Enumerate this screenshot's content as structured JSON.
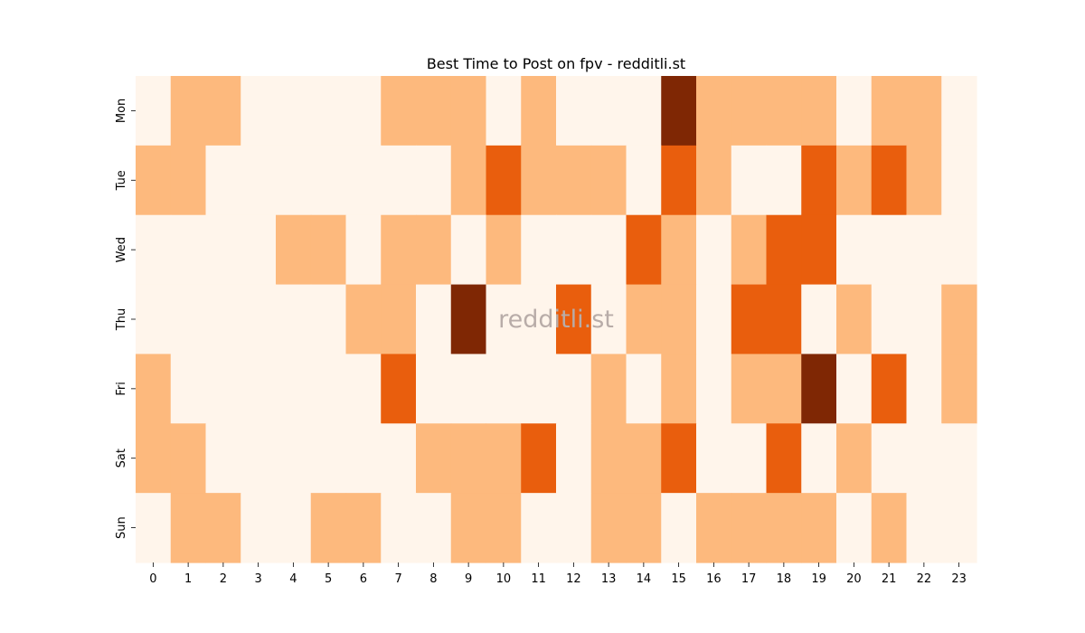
{
  "chart_data": {
    "type": "heatmap",
    "title": "Best Time to Post on fpv - redditli.st",
    "watermark": "redditli.st",
    "x_categories": [
      "0",
      "1",
      "2",
      "3",
      "4",
      "5",
      "6",
      "7",
      "8",
      "9",
      "10",
      "11",
      "12",
      "13",
      "14",
      "15",
      "16",
      "17",
      "18",
      "19",
      "20",
      "21",
      "22",
      "23"
    ],
    "y_categories": [
      "Mon",
      "Tue",
      "Wed",
      "Thu",
      "Fri",
      "Sat",
      "Sun"
    ],
    "values": [
      [
        0,
        1,
        1,
        0,
        0,
        0,
        0,
        1,
        1,
        1,
        0,
        1,
        0,
        0,
        0,
        3,
        1,
        1,
        1,
        1,
        0,
        1,
        1,
        0
      ],
      [
        1,
        1,
        0,
        0,
        0,
        0,
        0,
        0,
        0,
        1,
        2,
        1,
        1,
        1,
        0,
        2,
        1,
        0,
        0,
        2,
        1,
        2,
        1,
        0
      ],
      [
        0,
        0,
        0,
        0,
        1,
        1,
        0,
        1,
        1,
        0,
        1,
        0,
        0,
        0,
        2,
        1,
        0,
        1,
        2,
        2,
        0,
        0,
        0,
        0
      ],
      [
        0,
        0,
        0,
        0,
        0,
        0,
        1,
        1,
        0,
        3,
        0,
        0,
        2,
        0,
        1,
        1,
        0,
        2,
        2,
        0,
        1,
        0,
        0,
        1
      ],
      [
        1,
        0,
        0,
        0,
        0,
        0,
        0,
        2,
        0,
        0,
        0,
        0,
        0,
        1,
        0,
        1,
        0,
        1,
        1,
        3,
        0,
        2,
        0,
        1
      ],
      [
        1,
        1,
        0,
        0,
        0,
        0,
        0,
        0,
        1,
        1,
        1,
        2,
        0,
        1,
        1,
        2,
        0,
        0,
        2,
        0,
        1,
        0,
        0,
        0
      ],
      [
        0,
        1,
        1,
        0,
        0,
        1,
        1,
        0,
        0,
        1,
        1,
        0,
        0,
        1,
        1,
        0,
        1,
        1,
        1,
        1,
        0,
        1,
        0,
        0
      ]
    ],
    "colors": [
      "#fff5eb",
      "#fdb97d",
      "#e95e0d",
      "#7f2704"
    ],
    "colormap": "Oranges",
    "grid": false,
    "legend": "none"
  }
}
